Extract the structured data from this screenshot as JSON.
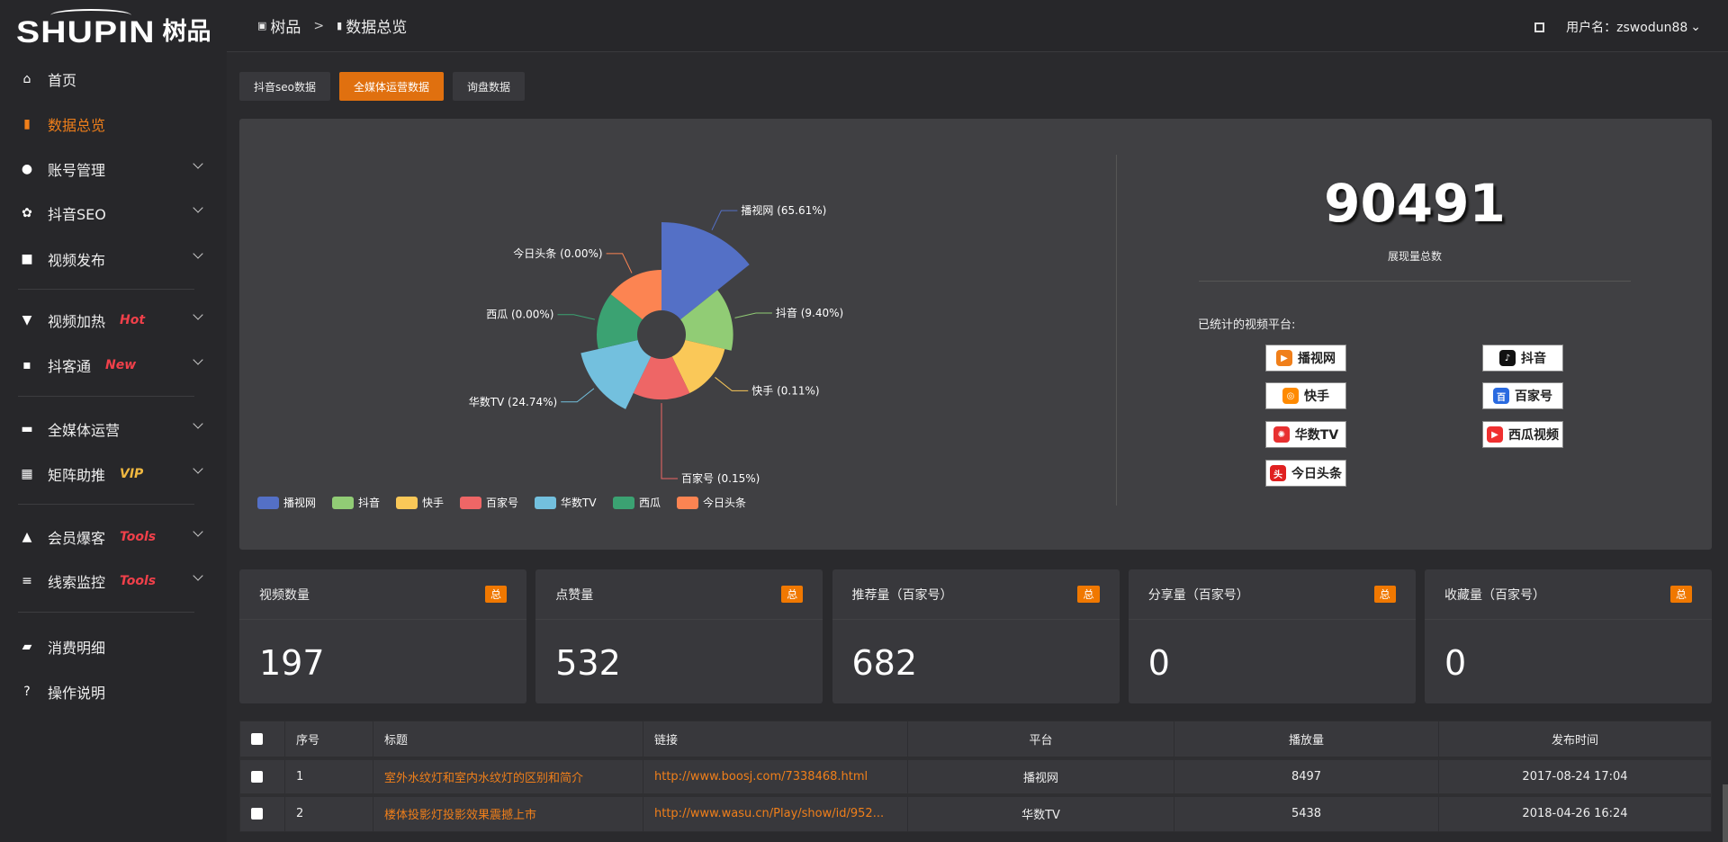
{
  "logo": {
    "en": "SHUPIN",
    "cn": "树品"
  },
  "sidebar": {
    "items": [
      {
        "label": "首页",
        "icon": "home-icon",
        "glyph": "⌂"
      },
      {
        "label": "数据总览",
        "icon": "bar-chart-icon",
        "glyph": "▮",
        "active": true
      },
      {
        "label": "账号管理",
        "icon": "user-icon",
        "glyph": "●",
        "chev": true
      },
      {
        "label": "抖音SEO",
        "icon": "gear-icon",
        "glyph": "✿",
        "chev": true
      },
      {
        "label": "视频发布",
        "icon": "camera-icon",
        "glyph": "■",
        "chev": true
      },
      {
        "label": "视频加热",
        "icon": "monitor-icon",
        "glyph": "▼",
        "chev": true,
        "tag": "Hot",
        "tagColor": "#f0404a"
      },
      {
        "label": "抖客通",
        "icon": "chat-icon",
        "glyph": "▪",
        "chev": true,
        "tag": "New",
        "tagColor": "#f0404a"
      },
      {
        "label": "全媒体运营",
        "icon": "desktop-icon",
        "glyph": "▬",
        "chev": true
      },
      {
        "label": "矩阵助推",
        "icon": "grid-icon",
        "glyph": "▦",
        "chev": true,
        "tag": "VIP",
        "tagColor": "#f0b840"
      },
      {
        "label": "会员爆客",
        "icon": "member-icon",
        "glyph": "▲",
        "chev": true,
        "tag": "Tools",
        "tagColor": "#f0404a"
      },
      {
        "label": "线索监控",
        "icon": "sliders-icon",
        "glyph": "≡",
        "chev": true,
        "tag": "Tools",
        "tagColor": "#f0404a"
      },
      {
        "label": "消费明细",
        "icon": "wallet-icon",
        "glyph": "▰"
      },
      {
        "label": "操作说明",
        "icon": "help-icon",
        "glyph": "?"
      }
    ]
  },
  "header": {
    "crumb_home": "树品",
    "crumb_sep": ">",
    "crumb_current": "数据总览",
    "user": "用户名：zswodun88"
  },
  "tabs": [
    {
      "label": "抖音seo数据"
    },
    {
      "label": "全媒体运营数据",
      "active": true
    },
    {
      "label": "询盘数据"
    }
  ],
  "summary": {
    "total": "90491",
    "total_label": "展现量总数",
    "platforms_title": "已统计的视频平台:"
  },
  "logos": [
    {
      "text": "播视网",
      "color": "#f07f1a",
      "mark": "▶"
    },
    {
      "text": "抖音",
      "color": "#111",
      "mark": "♪"
    },
    {
      "text": "快手",
      "color": "#ff8a00",
      "mark": "◎"
    },
    {
      "text": "百家号",
      "color": "#2a6ae0",
      "mark": "百"
    },
    {
      "text": "华数TV",
      "color": "#e83030",
      "mark": "✺"
    },
    {
      "text": "西瓜视频",
      "color": "#f03030",
      "mark": "▶"
    },
    {
      "text": "今日头条",
      "color": "#e02020",
      "mark": "头"
    }
  ],
  "chart_data": {
    "type": "pie",
    "variant": "rose",
    "legend_position": "bottom",
    "categories": [
      "播视网",
      "抖音",
      "快手",
      "百家号",
      "华数TV",
      "西瓜",
      "今日头条"
    ],
    "values": [
      65.61,
      9.4,
      0.11,
      0.15,
      24.74,
      0.0,
      0.0
    ],
    "labels": [
      "播视网 (65.61%)",
      "抖音 (9.40%)",
      "快手 (0.11%)",
      "百家号 (0.15%)",
      "华数TV (24.74%)",
      "西瓜 (0.00%)",
      "今日头条 (0.00%)"
    ],
    "colors": [
      "#5470c6",
      "#91cc75",
      "#fac858",
      "#ee6666",
      "#73c0de",
      "#3ba272",
      "#fc8452"
    ]
  },
  "cards": [
    {
      "title": "视频数量",
      "badge": "总",
      "value": "197"
    },
    {
      "title": "点赞量",
      "badge": "总",
      "value": "532"
    },
    {
      "title": "推荐量（百家号）",
      "badge": "总",
      "value": "682"
    },
    {
      "title": "分享量（百家号）",
      "badge": "总",
      "value": "0"
    },
    {
      "title": "收藏量（百家号）",
      "badge": "总",
      "value": "0"
    }
  ],
  "table": {
    "headers": [
      "序号",
      "标题",
      "链接",
      "平台",
      "播放量",
      "发布时间"
    ],
    "rows": [
      [
        "1",
        "室外水纹灯和室内水纹灯的区别和简介",
        "http://www.boosj.com/7338468.html",
        "播视网",
        "8497",
        "2017-08-24 17:04"
      ],
      [
        "2",
        "楼体投影灯投影效果震撼上市",
        "http://www.wasu.cn/Play/show/id/952...",
        "华数TV",
        "5438",
        "2018-04-26 16:24"
      ]
    ]
  }
}
